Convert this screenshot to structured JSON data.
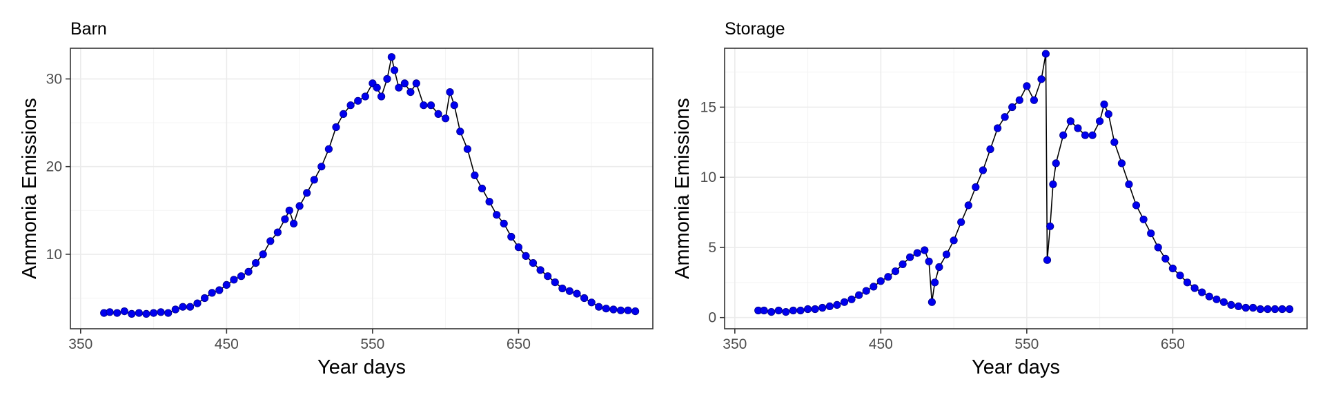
{
  "chart_data": [
    {
      "type": "scatter",
      "title": "Barn",
      "xlabel": "Year days",
      "ylabel": "Ammonia Emissions",
      "xlim": [
        343,
        742
      ],
      "ylim": [
        1.5,
        33.5
      ],
      "x_ticks": [
        350,
        450,
        550,
        650
      ],
      "y_ticks": [
        10,
        20,
        30
      ],
      "grid": true,
      "line_color": "#000000",
      "point_color": "#0000ee",
      "series": [
        {
          "x": [
            366,
            370,
            375,
            380,
            385,
            390,
            395,
            400,
            405,
            410,
            415,
            420,
            425,
            430,
            435,
            440,
            445,
            450,
            455,
            460,
            465,
            470,
            475,
            480,
            485,
            490,
            493,
            496,
            500,
            505,
            510,
            515,
            520,
            525,
            530,
            535,
            540,
            545,
            550,
            553,
            556,
            560,
            563,
            565,
            568,
            572,
            576,
            580,
            585,
            590,
            595,
            600,
            603,
            606,
            610,
            615,
            620,
            625,
            630,
            635,
            640,
            645,
            650,
            655,
            660,
            665,
            670,
            675,
            680,
            685,
            690,
            695,
            700,
            705,
            710,
            715,
            720,
            725,
            730
          ],
          "y": [
            3.3,
            3.4,
            3.3,
            3.5,
            3.2,
            3.3,
            3.2,
            3.3,
            3.4,
            3.3,
            3.7,
            4.0,
            4.0,
            4.4,
            5.0,
            5.6,
            5.9,
            6.5,
            7.1,
            7.5,
            8.0,
            9.0,
            10.0,
            11.5,
            12.5,
            14.0,
            15.0,
            13.5,
            15.5,
            17.0,
            18.5,
            20.0,
            22.0,
            24.5,
            26.0,
            27.0,
            27.5,
            28.0,
            29.5,
            29.0,
            28.0,
            30.0,
            32.5,
            31.0,
            29.0,
            29.5,
            28.5,
            29.5,
            27.0,
            27.0,
            26.0,
            25.5,
            28.5,
            27.0,
            24.0,
            22.0,
            19.0,
            17.5,
            16.0,
            14.5,
            13.5,
            12.0,
            10.8,
            9.8,
            9.0,
            8.2,
            7.5,
            6.8,
            6.1,
            5.8,
            5.5,
            5.0,
            4.5,
            4.0,
            3.8,
            3.7,
            3.6,
            3.6,
            3.5
          ]
        }
      ]
    },
    {
      "type": "scatter",
      "title": "Storage",
      "xlabel": "Year days",
      "ylabel": "Ammonia Emissions",
      "xlim": [
        343,
        742
      ],
      "ylim": [
        -0.8,
        19.2
      ],
      "x_ticks": [
        350,
        450,
        550,
        650
      ],
      "y_ticks": [
        0,
        5,
        10,
        15
      ],
      "grid": true,
      "line_color": "#000000",
      "point_color": "#0000ee",
      "series": [
        {
          "x": [
            366,
            370,
            375,
            380,
            385,
            390,
            395,
            400,
            405,
            410,
            415,
            420,
            425,
            430,
            435,
            440,
            445,
            450,
            455,
            460,
            465,
            470,
            475,
            480,
            483,
            485,
            487,
            490,
            495,
            500,
            505,
            510,
            515,
            520,
            525,
            530,
            535,
            540,
            545,
            550,
            555,
            560,
            563,
            564,
            566,
            568,
            570,
            575,
            580,
            585,
            590,
            595,
            600,
            603,
            606,
            610,
            615,
            620,
            625,
            630,
            635,
            640,
            645,
            650,
            655,
            660,
            665,
            670,
            675,
            680,
            685,
            690,
            695,
            700,
            705,
            710,
            715,
            720,
            725,
            730
          ],
          "y": [
            0.5,
            0.5,
            0.4,
            0.5,
            0.4,
            0.5,
            0.5,
            0.6,
            0.6,
            0.7,
            0.8,
            0.9,
            1.1,
            1.3,
            1.6,
            1.9,
            2.2,
            2.6,
            2.9,
            3.3,
            3.8,
            4.3,
            4.6,
            4.8,
            4.0,
            1.1,
            2.5,
            3.6,
            4.5,
            5.5,
            6.8,
            8.0,
            9.3,
            10.5,
            12.0,
            13.5,
            14.3,
            15.0,
            15.5,
            16.5,
            15.5,
            17.0,
            18.8,
            4.1,
            6.5,
            9.5,
            11.0,
            13.0,
            14.0,
            13.5,
            13.0,
            13.0,
            14.0,
            15.2,
            14.5,
            12.5,
            11.0,
            9.5,
            8.0,
            7.0,
            6.0,
            5.0,
            4.2,
            3.5,
            3.0,
            2.5,
            2.1,
            1.8,
            1.5,
            1.3,
            1.1,
            0.9,
            0.8,
            0.7,
            0.7,
            0.6,
            0.6,
            0.6,
            0.6,
            0.6
          ]
        }
      ]
    }
  ]
}
